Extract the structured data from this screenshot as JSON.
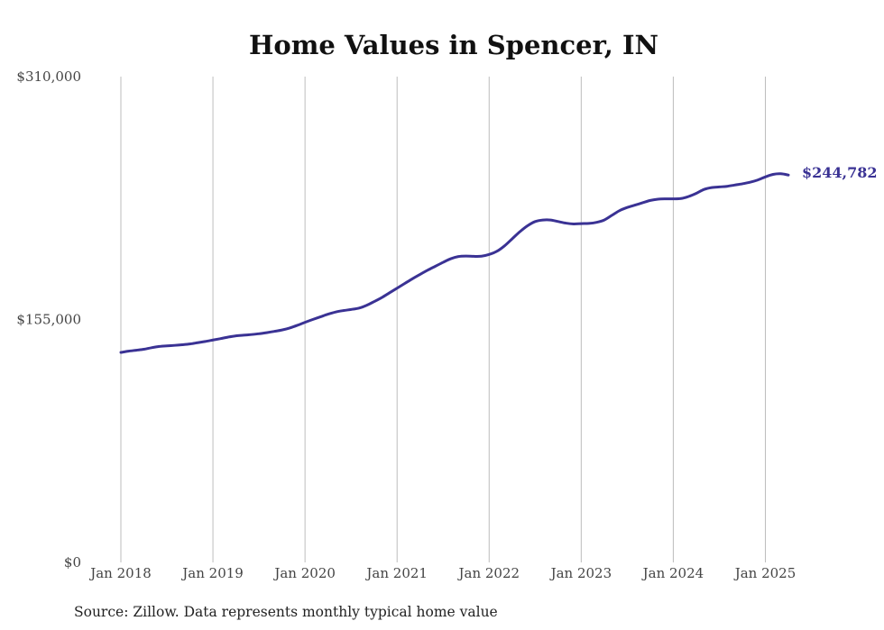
{
  "chart_data": {
    "type": "line",
    "title": "Home Values in Spencer, IN",
    "xlabel": "",
    "ylabel": "",
    "x_ticks": [
      "Jan 2018",
      "Jan 2019",
      "Jan 2020",
      "Jan 2021",
      "Jan 2022",
      "Jan 2023",
      "Jan 2024",
      "Jan 2025"
    ],
    "y_ticks": [
      "$310,000",
      "$155,000",
      "$0"
    ],
    "y_tick_values": [
      310000,
      155000,
      0
    ],
    "ylim": [
      0,
      310000
    ],
    "xlim": [
      "2018-01",
      "2025-04"
    ],
    "grid": "vertical",
    "color": "#3a3294",
    "end_label": "$244,782",
    "series": [
      {
        "x": [
          "2018-01",
          "2018-02",
          "2018-03",
          "2018-04",
          "2018-05",
          "2018-06",
          "2018-07",
          "2018-08",
          "2018-09",
          "2018-10",
          "2018-11",
          "2018-12",
          "2019-01",
          "2019-02",
          "2019-03",
          "2019-04",
          "2019-05",
          "2019-06",
          "2019-07",
          "2019-08",
          "2019-09",
          "2019-10",
          "2019-11",
          "2019-12",
          "2020-01",
          "2020-02",
          "2020-03",
          "2020-04",
          "2020-05",
          "2020-06",
          "2020-07",
          "2020-08",
          "2020-09",
          "2020-10",
          "2020-11",
          "2020-12",
          "2021-01",
          "2021-02",
          "2021-03",
          "2021-04",
          "2021-05",
          "2021-06",
          "2021-07",
          "2021-08",
          "2021-09",
          "2021-10",
          "2021-11",
          "2021-12",
          "2022-01",
          "2022-02",
          "2022-03",
          "2022-04",
          "2022-05",
          "2022-06",
          "2022-07",
          "2022-08",
          "2022-09",
          "2022-10",
          "2022-11",
          "2022-12",
          "2023-01",
          "2023-02",
          "2023-03",
          "2023-04",
          "2023-05",
          "2023-06",
          "2023-07",
          "2023-08",
          "2023-09",
          "2023-10",
          "2023-11",
          "2023-12",
          "2024-01",
          "2024-02",
          "2024-03",
          "2024-04",
          "2024-05",
          "2024-06",
          "2024-07",
          "2024-08",
          "2024-09",
          "2024-10",
          "2024-11",
          "2024-12",
          "2025-01",
          "2025-02",
          "2025-03",
          "2025-04"
        ],
        "y": [
          134000,
          134800,
          135400,
          136000,
          137000,
          137800,
          138200,
          138500,
          138900,
          139400,
          140200,
          141000,
          141900,
          142800,
          143800,
          144600,
          145000,
          145400,
          145900,
          146600,
          147400,
          148300,
          149600,
          151300,
          153200,
          155000,
          156700,
          158400,
          159800,
          160700,
          161400,
          162200,
          164000,
          166400,
          169000,
          172000,
          175000,
          178000,
          181000,
          183800,
          186500,
          189000,
          191500,
          193800,
          195200,
          195500,
          195300,
          195400,
          196500,
          198500,
          202000,
          206500,
          211000,
          214800,
          217500,
          218500,
          218500,
          217500,
          216500,
          216000,
          216200,
          216300,
          217000,
          218500,
          221500,
          224500,
          226500,
          228000,
          229500,
          231000,
          231800,
          232000,
          232000,
          232200,
          233500,
          235500,
          238000,
          239200,
          239600,
          240000,
          240800,
          241600,
          242600,
          244000,
          246000,
          247600,
          248000,
          247200
        ]
      }
    ]
  },
  "source_note": "Source: Zillow. Data represents monthly typical home value"
}
